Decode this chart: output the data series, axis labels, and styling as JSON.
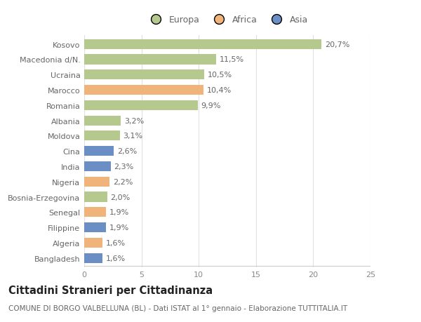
{
  "categories": [
    "Kosovo",
    "Macedonia d/N.",
    "Ucraina",
    "Marocco",
    "Romania",
    "Albania",
    "Moldova",
    "Cina",
    "India",
    "Nigeria",
    "Bosnia-Erzegovina",
    "Senegal",
    "Filippine",
    "Algeria",
    "Bangladesh"
  ],
  "values": [
    20.7,
    11.5,
    10.5,
    10.4,
    9.9,
    3.2,
    3.1,
    2.6,
    2.3,
    2.2,
    2.0,
    1.9,
    1.9,
    1.6,
    1.6
  ],
  "labels": [
    "20,7%",
    "11,5%",
    "10,5%",
    "10,4%",
    "9,9%",
    "3,2%",
    "3,1%",
    "2,6%",
    "2,3%",
    "2,2%",
    "2,0%",
    "1,9%",
    "1,9%",
    "1,6%",
    "1,6%"
  ],
  "continents": [
    "Europa",
    "Europa",
    "Europa",
    "Africa",
    "Europa",
    "Europa",
    "Europa",
    "Asia",
    "Asia",
    "Africa",
    "Europa",
    "Africa",
    "Asia",
    "Africa",
    "Asia"
  ],
  "colors": {
    "Europa": "#b5c98e",
    "Africa": "#f0b47a",
    "Asia": "#6b8fc4"
  },
  "xlim": [
    0,
    25
  ],
  "xticks": [
    0,
    5,
    10,
    15,
    20,
    25
  ],
  "title": "Cittadini Stranieri per Cittadinanza",
  "subtitle": "COMUNE DI BORGO VALBELLUNA (BL) - Dati ISTAT al 1° gennaio - Elaborazione TUTTITALIA.IT",
  "bg_color": "#ffffff",
  "grid_color": "#e0e0e0",
  "bar_height": 0.65,
  "label_fontsize": 8,
  "ytick_fontsize": 8,
  "xtick_fontsize": 8,
  "title_fontsize": 10.5,
  "subtitle_fontsize": 7.5
}
